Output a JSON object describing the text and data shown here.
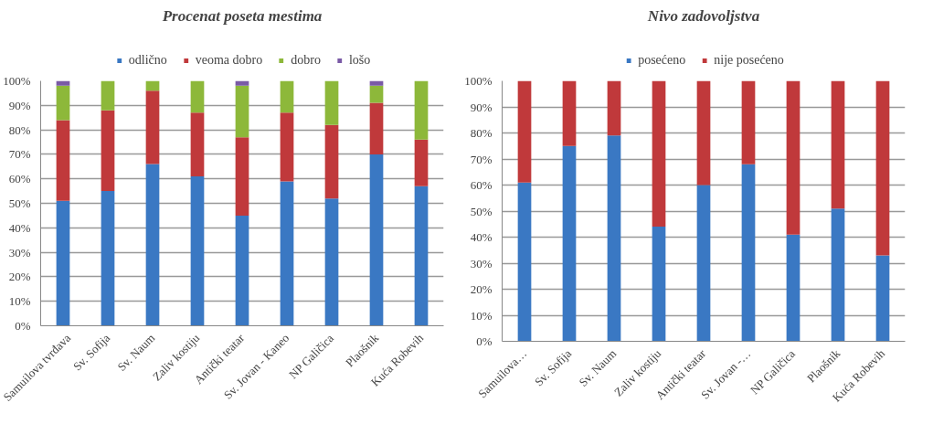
{
  "chart_data": [
    {
      "type": "bar",
      "title": "Procenat poseta mestima",
      "stacked": true,
      "legend": "top",
      "categories": [
        "Samuilova tvrđava",
        "Sv. Sofija",
        "Sv. Naum",
        "Zaliv kostiju",
        "Antički teatar",
        "Sv. Jovan - Kaneo",
        "NP Galičica",
        "Plaošnik",
        "Kuća Robevih"
      ],
      "series": [
        {
          "name": "odlično",
          "color": "#3a78c3",
          "values": [
            51,
            55,
            66,
            61,
            45,
            59,
            52,
            70,
            57
          ]
        },
        {
          "name": "veoma dobro",
          "color": "#c0393b",
          "values": [
            33,
            33,
            30,
            26,
            32,
            28,
            30,
            21,
            19
          ]
        },
        {
          "name": "dobro",
          "color": "#8db83a",
          "values": [
            14,
            12,
            4,
            13,
            21,
            13,
            18,
            7,
            24
          ]
        },
        {
          "name": "lošo",
          "color": "#7a5aa6",
          "values": [
            2,
            0,
            0,
            0,
            2,
            0,
            0,
            2,
            0
          ]
        }
      ],
      "ylim": [
        0,
        100
      ],
      "yticks": [
        {
          "value": 0,
          "label": "0%"
        },
        {
          "value": 10,
          "label": "10%"
        },
        {
          "value": 20,
          "label": "20%"
        },
        {
          "value": 30,
          "label": "30%"
        },
        {
          "value": 40,
          "label": "40%"
        },
        {
          "value": 50,
          "label": "50%"
        },
        {
          "value": 60,
          "label": "60%"
        },
        {
          "value": 70,
          "label": "70%"
        },
        {
          "value": 80,
          "label": "80%"
        },
        {
          "value": 90,
          "label": "90%"
        },
        {
          "value": 100,
          "label": "100%"
        }
      ],
      "grid": "y"
    },
    {
      "type": "bar",
      "title": "Nivo zadovoljstva",
      "stacked": true,
      "legend": "top",
      "categories": [
        "Samuilova…",
        "Sv. Sofija",
        "Sv. Naum",
        "Zaliv kostiju",
        "Antički teatar",
        "Sv. Jovan -…",
        "NP Galičica",
        "Plaošnik",
        "Kuća Robevih"
      ],
      "series": [
        {
          "name": "posećeno",
          "color": "#3a78c3",
          "values": [
            61,
            75,
            79,
            44,
            60,
            68,
            41,
            51,
            33
          ]
        },
        {
          "name": "nije posećeno",
          "color": "#c0393b",
          "values": [
            39,
            25,
            21,
            56,
            40,
            32,
            59,
            49,
            67
          ]
        }
      ],
      "ylim": [
        0,
        100
      ],
      "yticks": [
        {
          "value": 0,
          "label": "0%"
        },
        {
          "value": 10,
          "label": "10%"
        },
        {
          "value": 20,
          "label": "20%"
        },
        {
          "value": 30,
          "label": "30%"
        },
        {
          "value": 40,
          "label": "40%"
        },
        {
          "value": 50,
          "label": "50%"
        },
        {
          "value": 60,
          "label": "60%"
        },
        {
          "value": 70,
          "label": "70%"
        },
        {
          "value": 80,
          "label": "80%"
        },
        {
          "value": 90,
          "label": "90%"
        },
        {
          "value": 100,
          "label": "100%"
        }
      ],
      "grid": "y"
    }
  ]
}
